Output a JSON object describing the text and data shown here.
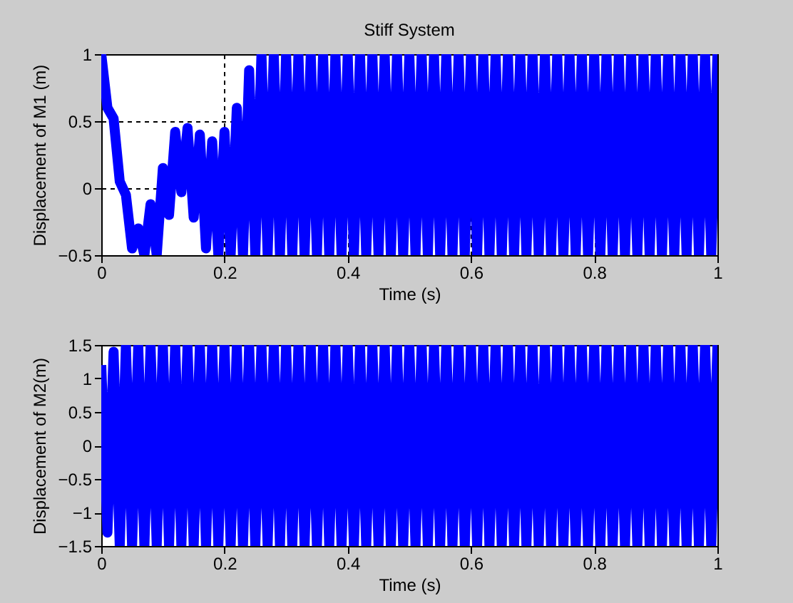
{
  "chart_data": [
    {
      "type": "line",
      "title": "Stiff System",
      "xlabel": "Time (s)",
      "ylabel": "Displacement of M1 (m)",
      "xlim": [
        0,
        1
      ],
      "xticks": [
        0,
        0.2,
        0.4,
        0.6,
        0.8,
        1
      ],
      "ylim": [
        -0.5,
        1
      ],
      "yticks": [
        -0.5,
        0,
        0.5,
        1
      ],
      "grid": true,
      "x": [
        0,
        0.01,
        0.02,
        0.03,
        0.04,
        0.05,
        0.06,
        0.07,
        0.08,
        0.09,
        0.1,
        0.11,
        0.12,
        0.13,
        0.14,
        0.15,
        0.16,
        0.17,
        0.18,
        0.19,
        0.2,
        0.21,
        0.22,
        0.23,
        0.24,
        0.25,
        0.26,
        0.27,
        0.28,
        0.29,
        0.3,
        0.31,
        0.32,
        0.33,
        0.34,
        0.35,
        0.36,
        0.37,
        0.38,
        0.39,
        0.4,
        0.41,
        0.42,
        0.43,
        0.44,
        0.45,
        0.46,
        0.47,
        0.48,
        0.49,
        0.5,
        0.51,
        0.52,
        0.53,
        0.54,
        0.55,
        0.56,
        0.57,
        0.58,
        0.59,
        0.6,
        0.61,
        0.62,
        0.63,
        0.64,
        0.65,
        0.66,
        0.67,
        0.68,
        0.69,
        0.7,
        0.71,
        0.72,
        0.73,
        0.74,
        0.75,
        0.76,
        0.77,
        0.78,
        0.79,
        0.8,
        0.81,
        0.82,
        0.83,
        0.84,
        0.85,
        0.86,
        0.87,
        0.88,
        0.89,
        0.9,
        0.91,
        0.92,
        0.93,
        0.94,
        0.95,
        0.96,
        0.97,
        0.98,
        0.99,
        1
      ],
      "series": [
        {
          "color": "#0000ff",
          "values": [
            1,
            0.6,
            0.52,
            0.05,
            -0.05,
            -0.45,
            -0.3,
            -0.5,
            -0.12,
            -0.5,
            0.15,
            -0.2,
            0.42,
            -0.03,
            0.45,
            -0.22,
            0.4,
            -0.45,
            0.35,
            -0.5,
            0.42,
            -0.5,
            0.6,
            -0.5,
            0.88,
            -0.5,
            1,
            -0.5,
            1,
            -0.5,
            1,
            -0.5,
            1,
            -0.5,
            1,
            -0.5,
            1,
            -0.5,
            1,
            -0.5,
            1,
            -0.5,
            1,
            -0.5,
            1,
            -0.5,
            1,
            -0.5,
            1,
            -0.5,
            1,
            -0.5,
            1,
            -0.5,
            1,
            -0.5,
            1,
            -0.5,
            1,
            -0.5,
            1,
            -0.5,
            1,
            -0.5,
            1,
            -0.5,
            1,
            -0.5,
            1,
            -0.5,
            1,
            -0.5,
            1,
            -0.5,
            1,
            -0.5,
            1,
            -0.5,
            1,
            -0.5,
            1,
            -0.5,
            1,
            -0.5,
            1,
            -0.5,
            1,
            -0.5,
            1,
            -0.5,
            1,
            -0.5,
            1,
            -0.5,
            1,
            -0.5,
            1,
            -0.5,
            1,
            -0.5,
            1
          ]
        }
      ]
    },
    {
      "type": "line",
      "xlabel": "Time (s)",
      "ylabel": "Displacement of M2(m)",
      "xlim": [
        0,
        1
      ],
      "xticks": [
        0,
        0.2,
        0.4,
        0.6,
        0.8,
        1
      ],
      "ylim": [
        -1.5,
        1.5
      ],
      "yticks": [
        -1.5,
        -1,
        -0.5,
        0,
        0.5,
        1,
        1.5
      ],
      "x": [
        0,
        0.01,
        0.02,
        0.03,
        0.04,
        0.05,
        0.06,
        0.07,
        0.08,
        0.09,
        0.1,
        0.11,
        0.12,
        0.13,
        0.14,
        0.15,
        0.16,
        0.17,
        0.18,
        0.19,
        0.2,
        0.21,
        0.22,
        0.23,
        0.24,
        0.25,
        0.26,
        0.27,
        0.28,
        0.29,
        0.3,
        0.31,
        0.32,
        0.33,
        0.34,
        0.35,
        0.36,
        0.37,
        0.38,
        0.39,
        0.4,
        0.41,
        0.42,
        0.43,
        0.44,
        0.45,
        0.46,
        0.47,
        0.48,
        0.49,
        0.5,
        0.51,
        0.52,
        0.53,
        0.54,
        0.55,
        0.56,
        0.57,
        0.58,
        0.59,
        0.6,
        0.61,
        0.62,
        0.63,
        0.64,
        0.65,
        0.66,
        0.67,
        0.68,
        0.69,
        0.7,
        0.71,
        0.72,
        0.73,
        0.74,
        0.75,
        0.76,
        0.77,
        0.78,
        0.79,
        0.8,
        0.81,
        0.82,
        0.83,
        0.84,
        0.85,
        0.86,
        0.87,
        0.88,
        0.89,
        0.9,
        0.91,
        0.92,
        0.93,
        0.94,
        0.95,
        0.96,
        0.97,
        0.98,
        0.99,
        1
      ],
      "series": [
        {
          "color": "#0000ff",
          "values": [
            1.2,
            -1.3,
            1.4,
            -1.5,
            1.5,
            -1.5,
            1.5,
            -1.5,
            1.5,
            -1.5,
            1.5,
            -1.5,
            1.5,
            -1.5,
            1.5,
            -1.5,
            1.5,
            -1.5,
            1.5,
            -1.5,
            1.5,
            -1.5,
            1.5,
            -1.5,
            1.5,
            -1.5,
            1.5,
            -1.5,
            1.5,
            -1.5,
            1.5,
            -1.5,
            1.5,
            -1.5,
            1.5,
            -1.5,
            1.5,
            -1.5,
            1.5,
            -1.5,
            1.5,
            -1.5,
            1.5,
            -1.5,
            1.5,
            -1.5,
            1.5,
            -1.5,
            1.5,
            -1.5,
            1.5,
            -1.5,
            1.5,
            -1.5,
            1.5,
            -1.5,
            1.5,
            -1.5,
            1.5,
            -1.5,
            1.5,
            -1.5,
            1.5,
            -1.5,
            1.5,
            -1.5,
            1.5,
            -1.5,
            1.5,
            -1.5,
            1.5,
            -1.5,
            1.5,
            -1.5,
            1.5,
            -1.5,
            1.5,
            -1.5,
            1.5,
            -1.5,
            1.5,
            -1.5,
            1.5,
            -1.5,
            1.5,
            -1.5,
            1.5,
            -1.5,
            1.5,
            -1.5,
            1.5,
            -1.5,
            1.5,
            -1.5,
            1.5,
            -1.5,
            1.5,
            -1.5,
            1.5,
            -1.5,
            1.5
          ]
        }
      ]
    }
  ]
}
